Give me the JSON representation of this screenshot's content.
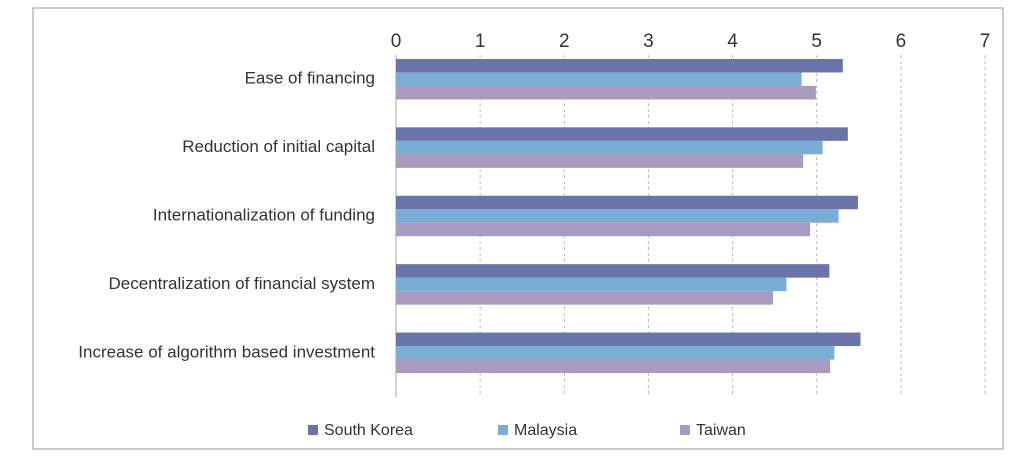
{
  "chart_data": {
    "type": "bar",
    "orientation": "horizontal",
    "categories": [
      "Ease of financing",
      "Reduction of initial capital",
      "Internationalization of funding",
      "Decentralization of financial system",
      "Increase of algorithm based investment"
    ],
    "series": [
      {
        "name": "South Korea",
        "color": "#6b74a8",
        "values": [
          5.31,
          5.37,
          5.49,
          5.15,
          5.52
        ]
      },
      {
        "name": "Malaysia",
        "color": "#7aadd3",
        "values": [
          4.82,
          5.07,
          5.26,
          4.64,
          5.21
        ]
      },
      {
        "name": "Taiwan",
        "color": "#a99abf",
        "values": [
          4.99,
          4.84,
          4.92,
          4.48,
          5.16
        ]
      }
    ],
    "xlim": [
      0,
      7
    ],
    "xticks": [
      0,
      1,
      2,
      3,
      4,
      5,
      6,
      7
    ],
    "grid": true,
    "legend": "bottom"
  }
}
